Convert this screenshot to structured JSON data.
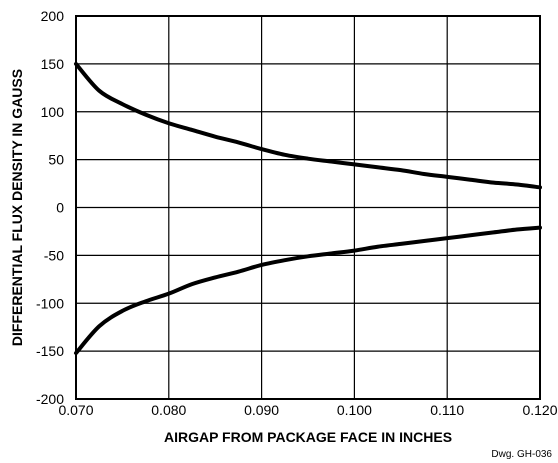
{
  "chart_data": {
    "type": "line",
    "xlabel": "AIRGAP FROM PACKAGE FACE IN INCHES",
    "ylabel": "DIFFERENTIAL FLUX DENSITY IN GAUSS",
    "xlim": [
      0.07,
      0.12
    ],
    "ylim": [
      -200,
      200
    ],
    "x_ticks": [
      "0.070",
      "0.080",
      "0.090",
      "0.100",
      "0.110",
      "0.120"
    ],
    "y_ticks": [
      "200",
      "150",
      "100",
      "50",
      "0",
      "-50",
      "-100",
      "-150",
      "-200"
    ],
    "grid": true,
    "series": [
      {
        "x": [
          0.07,
          0.0725,
          0.075,
          0.0775,
          0.08,
          0.0825,
          0.085,
          0.0875,
          0.09,
          0.0925,
          0.095,
          0.0975,
          0.1,
          0.1025,
          0.105,
          0.1075,
          0.11,
          0.1125,
          0.115,
          0.1175,
          0.12
        ],
        "values": [
          150,
          122,
          108,
          97,
          88,
          81,
          74,
          68,
          61,
          55,
          51,
          48,
          45,
          42,
          39,
          35,
          32,
          29,
          26,
          24,
          21
        ]
      },
      {
        "x": [
          0.07,
          0.0725,
          0.075,
          0.0775,
          0.08,
          0.0825,
          0.085,
          0.0875,
          0.09,
          0.0925,
          0.095,
          0.0975,
          0.1,
          0.1025,
          0.105,
          0.1075,
          0.11,
          0.1125,
          0.115,
          0.1175,
          0.12
        ],
        "values": [
          -152,
          -124,
          -108,
          -98,
          -90,
          -80,
          -73,
          -67,
          -60,
          -55,
          -51,
          -48,
          -45,
          -41,
          -38,
          -35,
          -32,
          -29,
          -26,
          -23,
          -21
        ]
      }
    ],
    "annotation": "Dwg. GH-036"
  },
  "colors": {
    "line": "#000000",
    "background": "#ffffff"
  }
}
